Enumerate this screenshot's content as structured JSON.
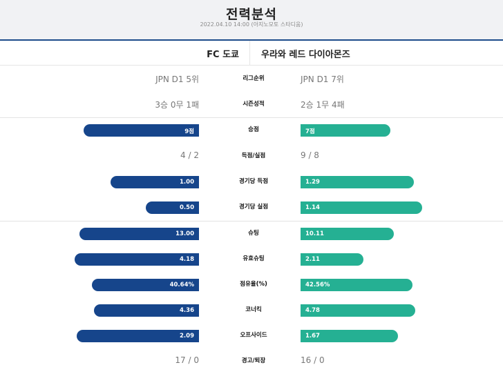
{
  "header": {
    "title": "전력분석",
    "subtitle": "2022.04.10 14:00 (아지노모토 스타디움)"
  },
  "teams": {
    "home": "FC 도쿄",
    "away": "우라와 레드 다이아몬즈"
  },
  "colors": {
    "home_bar": "#16458b",
    "away_bar": "#25b093"
  },
  "rows": [
    {
      "label": "리그순위",
      "type": "text",
      "home": "JPN D1 5위",
      "away": "JPN D1 7위"
    },
    {
      "label": "시즌성적",
      "type": "text",
      "home": "3승 0무 1패",
      "away": "2승 1무 4패"
    },
    {
      "label": "승점",
      "type": "bar",
      "home": "9점",
      "away": "7점",
      "home_value": 9,
      "away_value": 7
    },
    {
      "label": "득점/실점",
      "type": "text",
      "home": "4 / 2",
      "away": "9 / 8"
    },
    {
      "label": "경기당 득점",
      "type": "bar",
      "home": "1.00",
      "away": "1.29",
      "home_value": 1.0,
      "away_value": 1.29
    },
    {
      "label": "경기당 실점",
      "type": "bar",
      "home": "0.50",
      "away": "1.14",
      "home_value": 0.5,
      "away_value": 1.14
    },
    {
      "label": "슈팅",
      "type": "bar",
      "home": "13.00",
      "away": "10.11",
      "home_value": 13.0,
      "away_value": 10.11
    },
    {
      "label": "유효슈팅",
      "type": "bar",
      "home": "4.18",
      "away": "2.11",
      "home_value": 4.18,
      "away_value": 2.11
    },
    {
      "label": "점유율(%)",
      "type": "bar",
      "home": "40.64%",
      "away": "42.56%",
      "home_value": 40.64,
      "away_value": 42.56
    },
    {
      "label": "코너킥",
      "type": "bar",
      "home": "4.36",
      "away": "4.78",
      "home_value": 4.36,
      "away_value": 4.78
    },
    {
      "label": "오프사이드",
      "type": "bar",
      "home": "2.09",
      "away": "1.67",
      "home_value": 2.09,
      "away_value": 1.67
    },
    {
      "label": "경고/퇴장",
      "type": "text",
      "home": "17 / 0",
      "away": "16 / 0"
    }
  ]
}
